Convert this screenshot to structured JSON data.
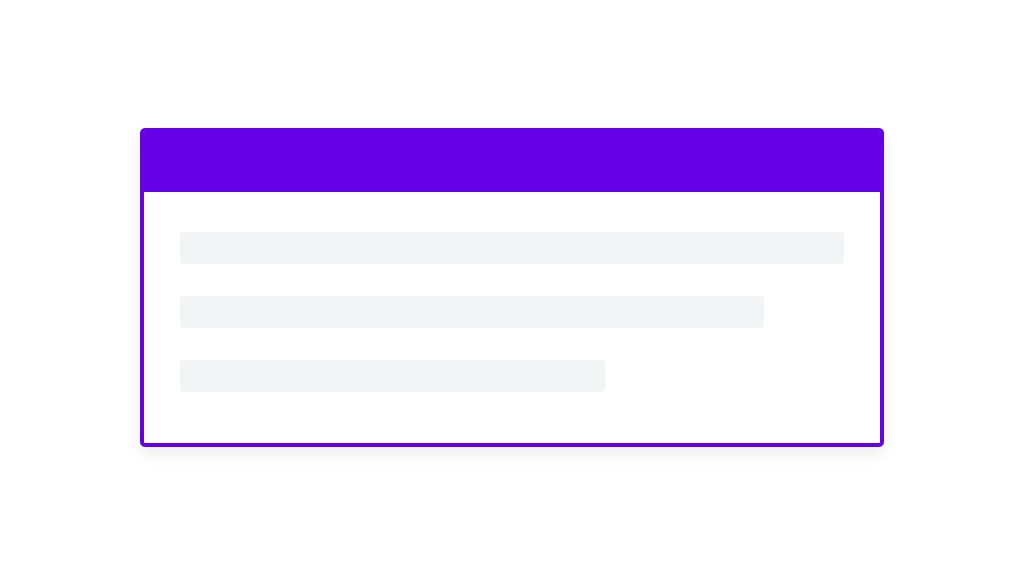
{
  "card": {
    "accent_color": "#6600e6",
    "skeleton_color": "#f3f4f6",
    "skeleton_lines": [
      {
        "width_percent": 100
      },
      {
        "width_percent": 88
      },
      {
        "width_percent": 64
      }
    ]
  }
}
